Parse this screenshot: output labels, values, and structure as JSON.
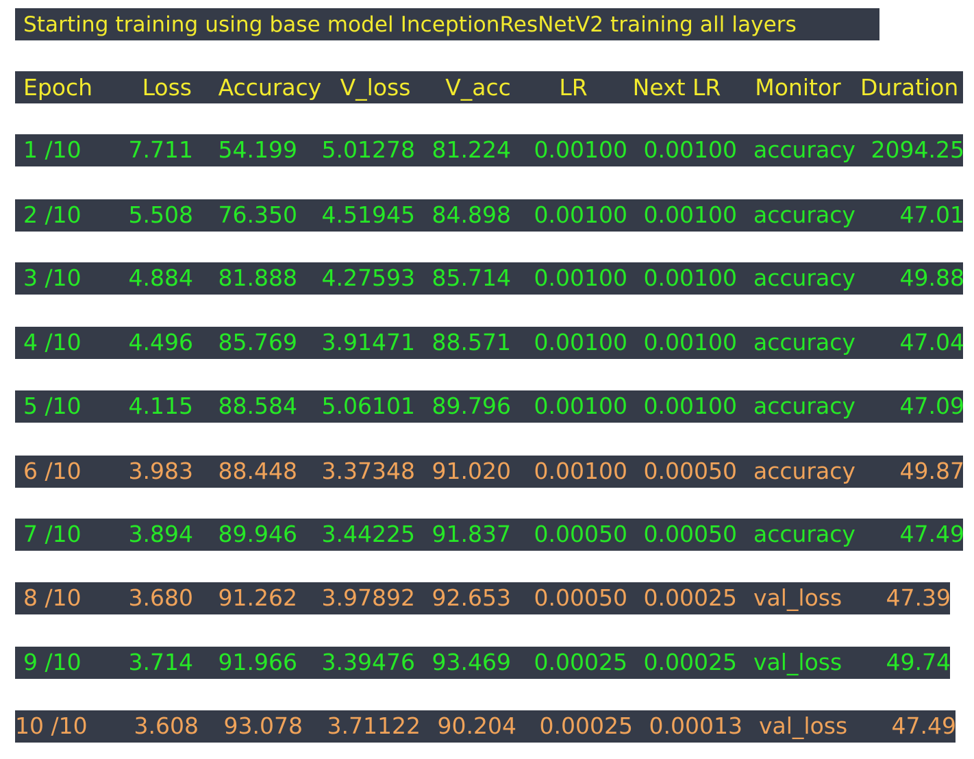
{
  "title": "Starting training using base model InceptionResNetV2 training all layers",
  "colors": {
    "background": "#ffffff",
    "bar": "#353b48",
    "title_text": "#f2ea2e",
    "header_text": "#f2ea2e",
    "green_row_text": "#26e826",
    "orange_row_text": "#f0a35a"
  },
  "columns": [
    "Epoch",
    "Loss",
    "Accuracy",
    "V_loss",
    "V_acc",
    "LR",
    "Next LR",
    "Monitor",
    "Duration"
  ],
  "rows": [
    {
      "color": "green",
      "cells": [
        "1 /10",
        "7.711",
        "54.199",
        "5.01278",
        "81.224",
        "0.00100",
        "0.00100",
        "accuracy",
        "2094.25"
      ]
    },
    {
      "color": "green",
      "cells": [
        "2 /10",
        "5.508",
        "76.350",
        "4.51945",
        "84.898",
        "0.00100",
        "0.00100",
        "accuracy",
        "47.01"
      ]
    },
    {
      "color": "green",
      "cells": [
        "3 /10",
        "4.884",
        "81.888",
        "4.27593",
        "85.714",
        "0.00100",
        "0.00100",
        "accuracy",
        "49.88"
      ]
    },
    {
      "color": "green",
      "cells": [
        "4 /10",
        "4.496",
        "85.769",
        "3.91471",
        "88.571",
        "0.00100",
        "0.00100",
        "accuracy",
        "47.04"
      ]
    },
    {
      "color": "green",
      "cells": [
        "5 /10",
        "4.115",
        "88.584",
        "5.06101",
        "89.796",
        "0.00100",
        "0.00100",
        "accuracy",
        "47.09"
      ]
    },
    {
      "color": "orange",
      "cells": [
        "6 /10",
        "3.983",
        "88.448",
        "3.37348",
        "91.020",
        "0.00100",
        "0.00050",
        "accuracy",
        "49.87"
      ]
    },
    {
      "color": "green",
      "cells": [
        "7 /10",
        "3.894",
        "89.946",
        "3.44225",
        "91.837",
        "0.00050",
        "0.00050",
        "accuracy",
        "47.49"
      ]
    },
    {
      "color": "orange",
      "cells": [
        "8 /10",
        "3.680",
        "91.262",
        "3.97892",
        "92.653",
        "0.00050",
        "0.00025",
        "val_loss",
        "47.39"
      ]
    },
    {
      "color": "green",
      "cells": [
        "9 /10",
        "3.714",
        "91.966",
        "3.39476",
        "93.469",
        "0.00025",
        "0.00025",
        "val_loss",
        "49.74"
      ]
    },
    {
      "color": "orange",
      "cells": [
        "10 /10",
        "3.608",
        "93.078",
        "3.71122",
        "90.204",
        "0.00025",
        "0.00013",
        "val_loss",
        "47.49"
      ]
    }
  ]
}
